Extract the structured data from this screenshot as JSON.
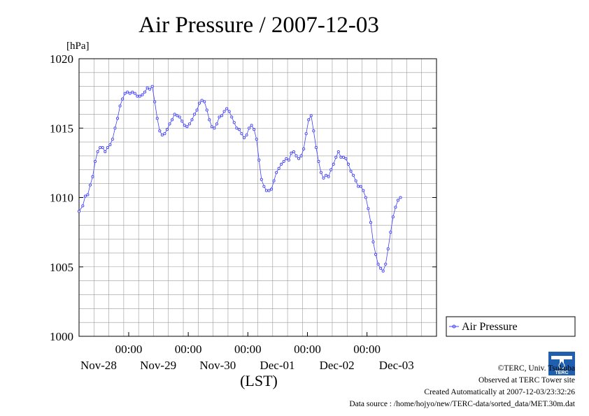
{
  "chart_data": {
    "type": "line",
    "title": "Air Pressure / 2007-12-03",
    "ylabel": "[hPa]",
    "xlabel": "(LST)",
    "ylim": [
      1000,
      1020
    ],
    "yticks": [
      "1000",
      "1005",
      "1010",
      "1015",
      "1020"
    ],
    "xlim_hours": [
      0,
      144
    ],
    "xticks": [
      {
        "time": "00:00",
        "date": "Nov-28"
      },
      {
        "time": "00:00",
        "date": "Nov-29"
      },
      {
        "time": "00:00",
        "date": "Nov-30"
      },
      {
        "time": "00:00",
        "date": "Dec-01"
      },
      {
        "time": "00:00",
        "date": "Dec-02"
      },
      {
        "time": "00:00",
        "date": "Dec-03"
      }
    ],
    "grid": true,
    "legend_position": "right",
    "series": [
      {
        "name": "Air Pressure",
        "color": "#4040ff",
        "points": [
          [
            0,
            1009.0
          ],
          [
            1.5,
            1009.4
          ],
          [
            2.5,
            1010.1
          ],
          [
            3.5,
            1010.2
          ],
          [
            4.5,
            1010.9
          ],
          [
            5.5,
            1011.5
          ],
          [
            6.5,
            1012.6
          ],
          [
            7.5,
            1013.3
          ],
          [
            8.5,
            1013.6
          ],
          [
            9.5,
            1013.6
          ],
          [
            10.5,
            1013.3
          ],
          [
            11.5,
            1013.6
          ],
          [
            12.5,
            1013.8
          ],
          [
            13.5,
            1014.2
          ],
          [
            14.5,
            1015.0
          ],
          [
            15.5,
            1015.7
          ],
          [
            16.5,
            1016.6
          ],
          [
            17.5,
            1017.1
          ],
          [
            18.5,
            1017.5
          ],
          [
            19.5,
            1017.6
          ],
          [
            20.5,
            1017.5
          ],
          [
            21.5,
            1017.6
          ],
          [
            22.5,
            1017.5
          ],
          [
            23.5,
            1017.3
          ],
          [
            24.5,
            1017.3
          ],
          [
            25.5,
            1017.4
          ],
          [
            26.5,
            1017.6
          ],
          [
            27.5,
            1017.9
          ],
          [
            28.5,
            1017.8
          ],
          [
            29.5,
            1018.0
          ],
          [
            30.5,
            1016.9
          ],
          [
            31.5,
            1015.7
          ],
          [
            32.5,
            1014.8
          ],
          [
            33.5,
            1014.5
          ],
          [
            34.5,
            1014.6
          ],
          [
            35.5,
            1014.9
          ],
          [
            36.5,
            1015.3
          ],
          [
            37.5,
            1015.6
          ],
          [
            38.5,
            1016.0
          ],
          [
            39.5,
            1015.9
          ],
          [
            40.5,
            1015.8
          ],
          [
            41.5,
            1015.5
          ],
          [
            42.5,
            1015.2
          ],
          [
            43.5,
            1015.1
          ],
          [
            44.5,
            1015.3
          ],
          [
            45.5,
            1015.6
          ],
          [
            46.5,
            1016.0
          ],
          [
            47.5,
            1016.3
          ],
          [
            48.5,
            1016.8
          ],
          [
            49.5,
            1017.0
          ],
          [
            50.5,
            1016.9
          ],
          [
            51.5,
            1016.3
          ],
          [
            52.5,
            1015.6
          ],
          [
            53.5,
            1015.1
          ],
          [
            54.5,
            1015.0
          ],
          [
            55.5,
            1015.3
          ],
          [
            56.5,
            1015.8
          ],
          [
            57.5,
            1015.9
          ],
          [
            58.5,
            1016.2
          ],
          [
            59.5,
            1016.4
          ],
          [
            60.5,
            1016.2
          ],
          [
            61.5,
            1015.8
          ],
          [
            62.5,
            1015.4
          ],
          [
            63.5,
            1015.0
          ],
          [
            64.5,
            1014.9
          ],
          [
            65.5,
            1014.6
          ],
          [
            66.5,
            1014.3
          ],
          [
            67.5,
            1014.5
          ],
          [
            68.5,
            1015.0
          ],
          [
            69.5,
            1015.2
          ],
          [
            70.5,
            1014.9
          ],
          [
            71.5,
            1014.2
          ],
          [
            72.5,
            1012.7
          ],
          [
            73.5,
            1011.3
          ],
          [
            74.5,
            1010.8
          ],
          [
            75.5,
            1010.5
          ],
          [
            76.5,
            1010.5
          ],
          [
            77.5,
            1010.6
          ],
          [
            78.5,
            1011.2
          ],
          [
            79.5,
            1011.8
          ],
          [
            80.5,
            1012.1
          ],
          [
            81.5,
            1012.4
          ],
          [
            82.5,
            1012.6
          ],
          [
            83.5,
            1012.8
          ],
          [
            84.5,
            1012.7
          ],
          [
            85.5,
            1013.2
          ],
          [
            86.5,
            1013.3
          ],
          [
            87.5,
            1013.0
          ],
          [
            88.5,
            1012.8
          ],
          [
            89.5,
            1013.0
          ],
          [
            90.5,
            1013.5
          ],
          [
            91.5,
            1014.6
          ],
          [
            92.5,
            1015.6
          ],
          [
            93.5,
            1015.9
          ],
          [
            94.5,
            1014.8
          ],
          [
            95.5,
            1013.6
          ],
          [
            96.5,
            1012.6
          ],
          [
            97.5,
            1011.8
          ],
          [
            98.5,
            1011.4
          ],
          [
            99.5,
            1011.6
          ],
          [
            100.5,
            1011.5
          ],
          [
            101.5,
            1012.0
          ],
          [
            102.5,
            1012.4
          ],
          [
            103.5,
            1012.9
          ],
          [
            104.5,
            1013.3
          ],
          [
            105.5,
            1012.9
          ],
          [
            106.5,
            1012.9
          ],
          [
            107.5,
            1012.8
          ],
          [
            108.5,
            1012.4
          ],
          [
            109.5,
            1011.9
          ],
          [
            110.5,
            1011.6
          ],
          [
            111.5,
            1011.2
          ],
          [
            112.5,
            1010.8
          ],
          [
            113.5,
            1010.8
          ],
          [
            114.5,
            1010.5
          ],
          [
            115.5,
            1010.0
          ],
          [
            116.5,
            1009.2
          ],
          [
            117.5,
            1008.2
          ],
          [
            118.5,
            1006.8
          ],
          [
            119.5,
            1005.9
          ],
          [
            120.5,
            1005.2
          ],
          [
            121.5,
            1004.9
          ],
          [
            122.5,
            1004.7
          ],
          [
            123.5,
            1005.2
          ],
          [
            124.5,
            1006.3
          ],
          [
            125.5,
            1007.5
          ],
          [
            126.5,
            1008.6
          ],
          [
            127.5,
            1009.3
          ],
          [
            128.5,
            1009.8
          ],
          [
            129.5,
            1010.0
          ]
        ]
      }
    ]
  },
  "credits": {
    "copyright": "©TERC, Univ. Tsukuba",
    "observed": "Observed at TERC Tower site",
    "created": "Created Automatically at 2007-12-03/23:32:26",
    "source": "Data source : /home/hojyo/new/TERC-data/sorted_data/MET.30m.dat"
  },
  "logo_text": "TERC"
}
